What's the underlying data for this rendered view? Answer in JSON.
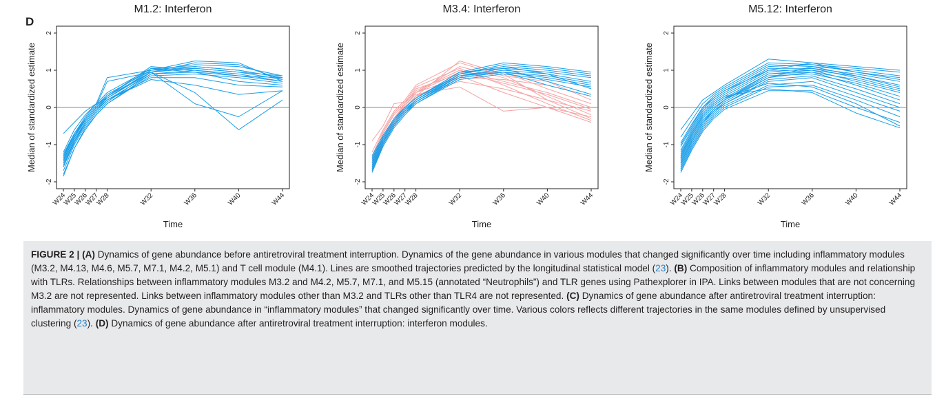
{
  "panel_label": "D",
  "caption": {
    "figure_label": "FIGURE 2 | ",
    "parts": [
      {
        "bold": "(A)",
        "text": " Dynamics of gene abundance before antiretroviral treatment interruption. Dynamics of the gene abundance in various modules that changed significantly over time including inflammatory modules (M3.2, M4.13, M4.6, M5.7, M7.1, M4.2, M5.1) and T cell module (M4.1). Lines are smoothed trajectories predicted by the longitudinal statistical model (",
        "cite": "23",
        "after": "). "
      },
      {
        "bold": "(B)",
        "text": " Composition of inflammatory modules and relationship with TLRs. Relationships between inflammatory modules M3.2 and M4.2, M5.7, M7.1, and M5.15 (annotated “Neutrophils”) and TLR genes using Pathexplorer in IPA. Links between modules that are not concerning M3.2 are not represented. Links between inflammatory modules other than M3.2 and TLRs other than TLR4 are not represented. ",
        "cite": "",
        "after": ""
      },
      {
        "bold": "(C)",
        "text": " Dynamics of gene abundance after antiretroviral treatment interruption: inflammatory modules. Dynamics of gene abundance in “inflammatory modules” that changed significantly over time. Various colors reflects different trajectories in the same modules defined by unsupervised clustering (",
        "cite": "23",
        "after": "). "
      },
      {
        "bold": "(D)",
        "text": " Dynamics of gene abundance after antiretroviral treatment interruption: interferon modules.",
        "cite": "",
        "after": ""
      }
    ]
  },
  "colors": {
    "blue": "#1a9ee8",
    "pink": "#f4a3a3",
    "axis": "#231f20",
    "zero_line": "#888888"
  },
  "chart_data": [
    {
      "type": "line",
      "title": "M1.2: Interferon",
      "xlabel": "Time",
      "ylabel": "Median of standardized estimate",
      "x_ticks": [
        "W24",
        "W25",
        "W26",
        "W27",
        "W28",
        "W32",
        "W36",
        "W40",
        "W44"
      ],
      "x_weeks": [
        24,
        25,
        26,
        27,
        28,
        32,
        36,
        40,
        44
      ],
      "ylim": [
        -2,
        2
      ],
      "y_ticks": [
        -2,
        -1,
        0,
        1,
        2
      ],
      "reference_line_y": 0,
      "series": [
        {
          "color": "blue",
          "values": [
            -1.2,
            -0.6,
            -0.2,
            0.1,
            0.4,
            1.05,
            1.1,
            1.0,
            0.8
          ]
        },
        {
          "color": "blue",
          "values": [
            -1.3,
            -0.7,
            -0.3,
            0.05,
            0.35,
            1.0,
            1.15,
            1.1,
            0.85
          ]
        },
        {
          "color": "blue",
          "values": [
            -1.4,
            -0.8,
            -0.35,
            0.0,
            0.3,
            0.95,
            1.2,
            1.15,
            0.75
          ]
        },
        {
          "color": "blue",
          "values": [
            -1.5,
            -0.85,
            -0.4,
            -0.05,
            0.25,
            1.0,
            1.25,
            1.2,
            0.7
          ]
        },
        {
          "color": "blue",
          "values": [
            -1.6,
            -0.9,
            -0.45,
            -0.1,
            0.2,
            0.9,
            1.0,
            0.9,
            0.7
          ]
        },
        {
          "color": "blue",
          "values": [
            -1.7,
            -1.0,
            -0.5,
            -0.15,
            0.15,
            0.95,
            1.05,
            0.95,
            0.75
          ]
        },
        {
          "color": "blue",
          "values": [
            -1.8,
            -1.1,
            -0.55,
            -0.2,
            0.1,
            0.85,
            0.9,
            0.8,
            0.65
          ]
        },
        {
          "color": "blue",
          "values": [
            -1.3,
            -0.75,
            -0.3,
            0.05,
            0.3,
            1.1,
            1.0,
            0.85,
            0.8
          ]
        },
        {
          "color": "blue",
          "values": [
            -1.45,
            -0.8,
            -0.35,
            0.0,
            0.3,
            1.05,
            0.95,
            0.7,
            0.6
          ]
        },
        {
          "color": "blue",
          "values": [
            -1.55,
            -0.9,
            -0.4,
            -0.05,
            0.2,
            0.8,
            0.8,
            0.6,
            0.55
          ]
        },
        {
          "color": "blue",
          "values": [
            -0.7,
            -0.4,
            -0.1,
            0.1,
            0.25,
            0.95,
            0.1,
            -0.25,
            0.45
          ]
        },
        {
          "color": "blue",
          "values": [
            -1.35,
            -0.75,
            -0.35,
            0.0,
            0.25,
            0.95,
            0.4,
            -0.6,
            0.2
          ]
        },
        {
          "color": "blue",
          "values": [
            -1.6,
            -0.95,
            -0.45,
            -0.1,
            0.2,
            0.75,
            0.6,
            0.35,
            0.45
          ]
        },
        {
          "color": "blue",
          "values": [
            -1.25,
            -0.7,
            -0.25,
            0.1,
            0.8,
            1.0,
            1.05,
            0.95,
            0.85
          ]
        },
        {
          "color": "blue",
          "values": [
            -1.4,
            -0.8,
            -0.3,
            0.05,
            0.7,
            0.95,
            1.1,
            1.0,
            0.8
          ]
        },
        {
          "color": "blue",
          "values": [
            -1.85,
            -1.1,
            -0.6,
            -0.2,
            0.1,
            0.9,
            0.95,
            0.85,
            0.7
          ]
        }
      ]
    },
    {
      "type": "line",
      "title": "M3.4: Interferon",
      "xlabel": "Time",
      "ylabel": "Median of standardized estimate",
      "x_ticks": [
        "W24",
        "W25",
        "W26",
        "W27",
        "W28",
        "W32",
        "W36",
        "W40",
        "W44"
      ],
      "x_weeks": [
        24,
        25,
        26,
        27,
        28,
        32,
        36,
        40,
        44
      ],
      "ylim": [
        -2,
        2
      ],
      "y_ticks": [
        -2,
        -1,
        0,
        1,
        2
      ],
      "reference_line_y": 0,
      "series": [
        {
          "color": "pink",
          "values": [
            -1.75,
            -1.0,
            -0.5,
            -0.05,
            0.3,
            1.25,
            0.9,
            0.2,
            -0.3
          ]
        },
        {
          "color": "pink",
          "values": [
            -1.6,
            -0.9,
            -0.35,
            0.05,
            0.4,
            1.1,
            0.8,
            0.3,
            -0.2
          ]
        },
        {
          "color": "pink",
          "values": [
            -1.5,
            -0.8,
            -0.3,
            0.1,
            0.45,
            1.0,
            0.7,
            0.4,
            0.0
          ]
        },
        {
          "color": "pink",
          "values": [
            -1.4,
            -0.7,
            -0.2,
            0.1,
            0.5,
            0.9,
            0.95,
            0.5,
            0.1
          ]
        },
        {
          "color": "pink",
          "values": [
            -1.3,
            -0.65,
            -0.15,
            0.15,
            0.55,
            1.05,
            0.6,
            0.1,
            -0.35
          ]
        },
        {
          "color": "pink",
          "values": [
            -0.9,
            -0.5,
            0.1,
            0.15,
            0.4,
            0.8,
            0.75,
            0.6,
            0.3
          ]
        },
        {
          "color": "pink",
          "values": [
            -1.7,
            -0.95,
            -0.45,
            -0.05,
            0.3,
            0.7,
            0.5,
            0.2,
            -0.1
          ]
        },
        {
          "color": "pink",
          "values": [
            -1.55,
            -0.85,
            -0.35,
            0.05,
            0.35,
            0.55,
            -0.1,
            0.0,
            -0.25
          ]
        },
        {
          "color": "pink",
          "values": [
            -1.2,
            -0.6,
            -0.1,
            0.2,
            0.6,
            1.2,
            0.85,
            0.7,
            0.2
          ]
        },
        {
          "color": "pink",
          "values": [
            -1.65,
            -0.95,
            -0.4,
            0.0,
            0.3,
            0.85,
            0.4,
            0.0,
            -0.4
          ]
        },
        {
          "color": "pink",
          "values": [
            -1.45,
            -0.8,
            -0.3,
            0.05,
            0.4,
            0.95,
            0.65,
            0.35,
            -0.05
          ]
        },
        {
          "color": "blue",
          "values": [
            -1.3,
            -0.75,
            -0.3,
            0.0,
            0.25,
            0.95,
            1.2,
            1.1,
            0.95
          ]
        },
        {
          "color": "blue",
          "values": [
            -1.4,
            -0.8,
            -0.35,
            0.0,
            0.25,
            0.9,
            1.15,
            1.05,
            0.9
          ]
        },
        {
          "color": "blue",
          "values": [
            -1.5,
            -0.85,
            -0.4,
            -0.05,
            0.2,
            0.9,
            1.1,
            1.0,
            0.85
          ]
        },
        {
          "color": "blue",
          "values": [
            -1.55,
            -0.9,
            -0.45,
            -0.1,
            0.2,
            0.85,
            1.05,
            0.95,
            0.8
          ]
        },
        {
          "color": "blue",
          "values": [
            -1.6,
            -0.95,
            -0.45,
            -0.1,
            0.15,
            0.85,
            1.0,
            0.9,
            0.7
          ]
        },
        {
          "color": "blue",
          "values": [
            -1.65,
            -1.0,
            -0.5,
            -0.15,
            0.15,
            0.8,
            0.95,
            0.85,
            0.65
          ]
        },
        {
          "color": "blue",
          "values": [
            -1.7,
            -1.0,
            -0.5,
            -0.15,
            0.1,
            0.8,
            0.95,
            0.8,
            0.6
          ]
        },
        {
          "color": "blue",
          "values": [
            -1.75,
            -1.05,
            -0.55,
            -0.2,
            0.1,
            0.75,
            0.9,
            0.75,
            0.55
          ]
        },
        {
          "color": "blue",
          "values": [
            -1.45,
            -0.85,
            -0.4,
            -0.05,
            0.2,
            0.9,
            1.1,
            0.9,
            0.5
          ]
        },
        {
          "color": "blue",
          "values": [
            -1.35,
            -0.8,
            -0.35,
            0.0,
            0.25,
            0.95,
            1.05,
            0.7,
            0.35
          ]
        },
        {
          "color": "blue",
          "values": [
            -1.6,
            -0.95,
            -0.45,
            -0.1,
            0.15,
            0.85,
            0.95,
            0.6,
            0.3
          ]
        }
      ]
    },
    {
      "type": "line",
      "title": "M5.12: Interferon",
      "xlabel": "Time",
      "ylabel": "Median of standardized estimate",
      "x_ticks": [
        "W24",
        "W25",
        "W26",
        "W27",
        "W28",
        "W32",
        "W36",
        "W40",
        "W44"
      ],
      "x_weeks": [
        24,
        25,
        26,
        27,
        28,
        32,
        36,
        40,
        44
      ],
      "ylim": [
        -2,
        2
      ],
      "y_ticks": [
        -2,
        -1,
        0,
        1,
        2
      ],
      "reference_line_y": 0,
      "series": [
        {
          "color": "blue",
          "values": [
            -0.6,
            -0.2,
            0.2,
            0.4,
            0.6,
            1.3,
            1.2,
            1.1,
            1.0
          ]
        },
        {
          "color": "blue",
          "values": [
            -0.8,
            -0.35,
            0.1,
            0.35,
            0.55,
            1.2,
            1.15,
            1.05,
            0.95
          ]
        },
        {
          "color": "blue",
          "values": [
            -0.95,
            -0.45,
            0.0,
            0.3,
            0.5,
            1.15,
            1.1,
            1.0,
            0.85
          ]
        },
        {
          "color": "blue",
          "values": [
            -1.05,
            -0.55,
            -0.05,
            0.25,
            0.45,
            1.1,
            1.15,
            0.95,
            0.8
          ]
        },
        {
          "color": "blue",
          "values": [
            -1.15,
            -0.6,
            -0.1,
            0.2,
            0.4,
            1.05,
            1.05,
            0.9,
            0.7
          ]
        },
        {
          "color": "blue",
          "values": [
            -1.2,
            -0.65,
            -0.15,
            0.15,
            0.35,
            1.0,
            1.0,
            0.85,
            0.6
          ]
        },
        {
          "color": "blue",
          "values": [
            -1.3,
            -0.7,
            -0.2,
            0.1,
            0.3,
            0.95,
            1.05,
            0.8,
            0.5
          ]
        },
        {
          "color": "blue",
          "values": [
            -1.35,
            -0.75,
            -0.25,
            0.05,
            0.25,
            0.9,
            0.95,
            0.75,
            0.45
          ]
        },
        {
          "color": "blue",
          "values": [
            -1.4,
            -0.8,
            -0.3,
            0.0,
            0.2,
            0.9,
            1.0,
            0.7,
            0.4
          ]
        },
        {
          "color": "blue",
          "values": [
            -1.45,
            -0.85,
            -0.35,
            -0.05,
            0.2,
            0.85,
            0.9,
            0.65,
            0.3
          ]
        },
        {
          "color": "blue",
          "values": [
            -1.5,
            -0.9,
            -0.4,
            -0.1,
            0.15,
            0.8,
            0.95,
            0.6,
            0.2
          ]
        },
        {
          "color": "blue",
          "values": [
            -1.55,
            -0.95,
            -0.45,
            -0.1,
            0.1,
            0.75,
            0.85,
            0.5,
            0.1
          ]
        },
        {
          "color": "blue",
          "values": [
            -1.6,
            -1.0,
            -0.5,
            -0.15,
            0.1,
            0.7,
            0.8,
            0.4,
            0.0
          ]
        },
        {
          "color": "blue",
          "values": [
            -1.65,
            -1.05,
            -0.55,
            -0.2,
            0.05,
            0.6,
            0.7,
            0.3,
            -0.1
          ]
        },
        {
          "color": "blue",
          "values": [
            -1.7,
            -1.1,
            -0.6,
            -0.25,
            0.0,
            0.55,
            0.6,
            0.2,
            -0.25
          ]
        },
        {
          "color": "blue",
          "values": [
            -1.75,
            -1.15,
            -0.65,
            -0.3,
            -0.05,
            0.45,
            0.45,
            0.0,
            -0.4
          ]
        },
        {
          "color": "blue",
          "values": [
            -1.25,
            -0.7,
            -0.2,
            0.1,
            0.3,
            0.5,
            0.4,
            -0.15,
            -0.55
          ]
        },
        {
          "color": "blue",
          "values": [
            -1.35,
            -0.75,
            -0.25,
            0.05,
            0.25,
            0.65,
            0.55,
            0.1,
            -0.5
          ]
        },
        {
          "color": "blue",
          "values": [
            -1.0,
            -0.5,
            0.0,
            0.25,
            0.45,
            1.0,
            1.2,
            0.95,
            0.75
          ]
        },
        {
          "color": "blue",
          "values": [
            -1.5,
            -0.9,
            -0.4,
            -0.05,
            0.2,
            0.8,
            1.1,
            0.85,
            0.55
          ]
        }
      ]
    }
  ]
}
